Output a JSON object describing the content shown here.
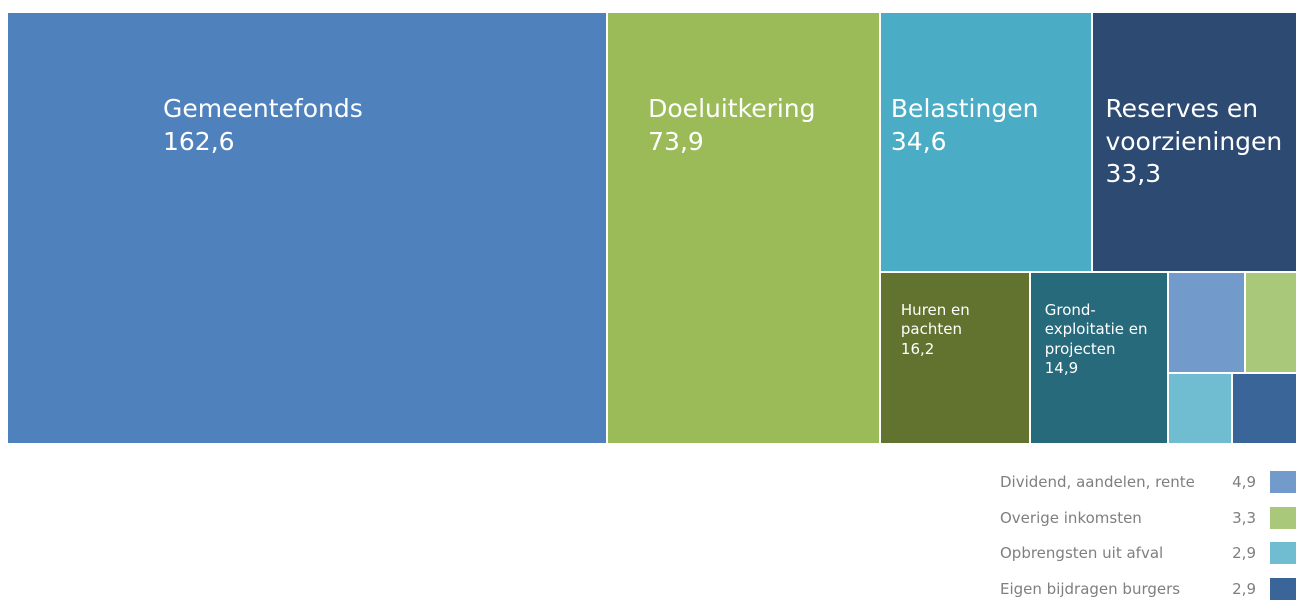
{
  "chart_data": {
    "type": "treemap",
    "categories": [
      "Gemeentefonds",
      "Doeluitkering",
      "Belastingen",
      "Reserves en voorzieningen",
      "Huren en pachten",
      "Grond-exploitatie en projecten",
      "Dividend, aandelen, rente",
      "Overige inkomsten",
      "Opbrengsten uit afval",
      "Eigen bijdragen burgers"
    ],
    "values": [
      162.6,
      73.9,
      34.6,
      33.3,
      16.2,
      14.9,
      4.9,
      3.3,
      2.9,
      2.9
    ],
    "value_labels": [
      "162,6",
      "73,9",
      "34,6",
      "33,3",
      "16,2",
      "14,9",
      "4,9",
      "3,3",
      "2,9",
      "2,9"
    ],
    "colors": [
      "#4f81bd",
      "#9bbb59",
      "#4bacc6",
      "#2c4a72",
      "#627330",
      "#276a7c",
      "#729aca",
      "#aac87a",
      "#70bcd1",
      "#3a6599"
    ]
  }
}
